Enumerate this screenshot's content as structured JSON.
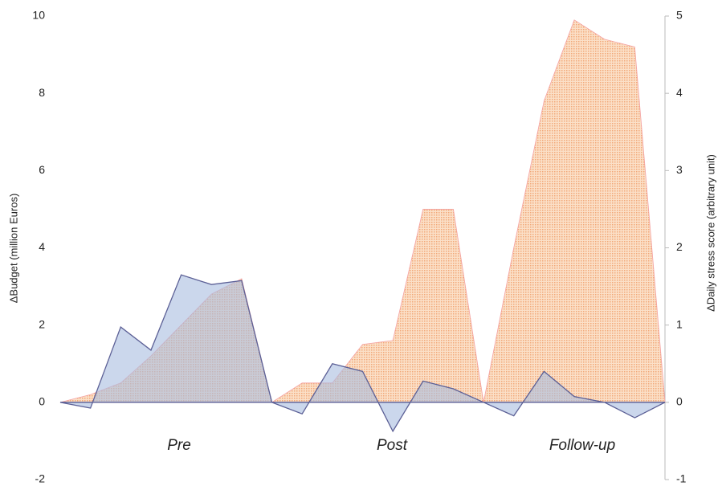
{
  "chart_data": {
    "type": "area",
    "ylabel": "ΔBudget (million Euros)",
    "y2label": "ΔDaily stress score (arbitrary unit)",
    "annotations": [
      "Pre",
      "Post",
      "Follow-up"
    ],
    "ylim": [
      -2,
      10
    ],
    "yticks": [
      -2,
      0,
      2,
      4,
      6,
      8,
      10
    ],
    "y2lim": [
      -1,
      5
    ],
    "y2ticks": [
      -1,
      0,
      1,
      2,
      3,
      4,
      5
    ],
    "series": [
      {
        "color": "#f7c49c",
        "axis": "y2",
        "values": [
          0,
          0.1,
          0.25,
          0.6,
          1.0,
          1.4,
          1.6,
          0,
          0.25,
          0.25,
          0.75,
          0.8,
          2.5,
          2.5,
          0,
          2.0,
          3.9,
          4.95,
          4.7,
          4.6,
          0
        ]
      },
      {
        "color": "#a9bde0",
        "axis": "y",
        "values": [
          0,
          -0.15,
          1.95,
          1.35,
          3.3,
          3.05,
          3.15,
          0,
          -0.3,
          1.0,
          0.8,
          -0.75,
          0.55,
          0.35,
          0,
          -0.35,
          0.8,
          0.15,
          0.0,
          -0.4,
          0
        ]
      }
    ]
  }
}
